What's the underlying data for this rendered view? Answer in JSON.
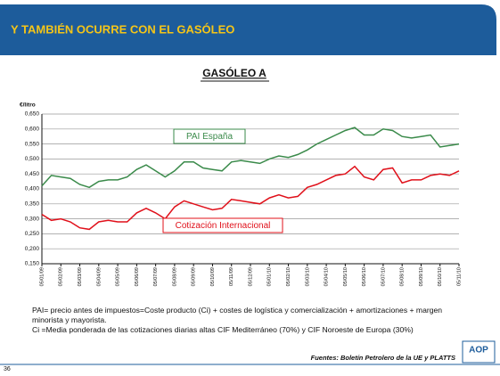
{
  "header": {
    "title": "Y TAMBIÉN OCURRE CON EL GASÓLEO"
  },
  "chart_data": {
    "type": "line",
    "title": "GASÓLEO A",
    "y_label": "€/litro",
    "categories": [
      "05/01/09",
      null,
      "05/02/09",
      null,
      "05/03/09",
      null,
      "05/04/09",
      null,
      "05/05/09",
      null,
      "05/06/09",
      null,
      "05/07/09",
      null,
      "05/08/09",
      null,
      "05/09/09",
      null,
      "05/10/09",
      null,
      "05/11/09",
      null,
      "05/12/09",
      null,
      "05/01/10",
      null,
      "05/02/10",
      null,
      "05/03/10",
      null,
      "05/04/10",
      null,
      "05/05/10",
      null,
      "05/06/10",
      null,
      "05/07/10",
      null,
      "05/08/10",
      null,
      "05/09/10",
      null,
      "05/10/10",
      null,
      "05/11/10"
    ],
    "series": [
      {
        "name": "PAI España",
        "color": "#3a8a4a",
        "values": [
          0.41,
          0.445,
          0.44,
          0.435,
          0.415,
          0.405,
          0.425,
          0.43,
          0.43,
          0.44,
          0.465,
          0.48,
          0.46,
          0.44,
          0.46,
          0.49,
          0.49,
          0.47,
          0.465,
          0.46,
          0.49,
          0.495,
          0.49,
          0.485,
          0.5,
          0.51,
          0.505,
          0.515,
          0.53,
          0.55,
          0.565,
          0.58,
          0.595,
          0.605,
          0.58,
          0.58,
          0.6,
          0.595,
          0.575,
          0.57,
          0.575,
          0.58,
          0.54,
          0.545,
          0.55
        ]
      },
      {
        "name": "Cotización Internacional",
        "color": "#e0101a",
        "values": [
          0.315,
          0.295,
          0.3,
          0.29,
          0.27,
          0.265,
          0.29,
          0.295,
          0.29,
          0.29,
          0.32,
          0.335,
          0.32,
          0.3,
          0.34,
          0.36,
          0.35,
          0.34,
          0.33,
          0.335,
          0.365,
          0.36,
          0.355,
          0.35,
          0.37,
          0.38,
          0.37,
          0.375,
          0.405,
          0.415,
          0.43,
          0.445,
          0.45,
          0.475,
          0.44,
          0.43,
          0.465,
          0.47,
          0.42,
          0.43,
          0.43,
          0.445,
          0.45,
          0.445,
          0.46
        ]
      }
    ],
    "ylim": [
      0.15,
      0.65
    ],
    "yticks": [
      {
        "value": 0.15,
        "label": "0,150"
      },
      {
        "value": 0.2,
        "label": "0,200"
      },
      {
        "value": 0.25,
        "label": "0,250"
      },
      {
        "value": 0.3,
        "label": "0,300"
      },
      {
        "value": 0.35,
        "label": "0,350"
      },
      {
        "value": 0.4,
        "label": "0,400"
      },
      {
        "value": 0.45,
        "label": "0,450"
      },
      {
        "value": 0.5,
        "label": "0,500"
      },
      {
        "value": 0.55,
        "label": "0,550"
      },
      {
        "value": 0.6,
        "label": "0,600"
      },
      {
        "value": 0.65,
        "label": "0,650"
      }
    ],
    "grid": true
  },
  "footnotes": [
    "PAI= precio antes de impuestos=Coste producto (Ci) + costes de logística y comercialización + amortizaciones + margen minorista y mayorista.",
    "Ci =Media ponderada de las cotizaciones diarias altas CIF Mediterráneo (70%) y CIF Noroeste de Europa (30%)"
  ],
  "source": "Fuentes: Boletín Petrolero de la UE y PLATTS",
  "page_number": "36",
  "logo": "AOP"
}
